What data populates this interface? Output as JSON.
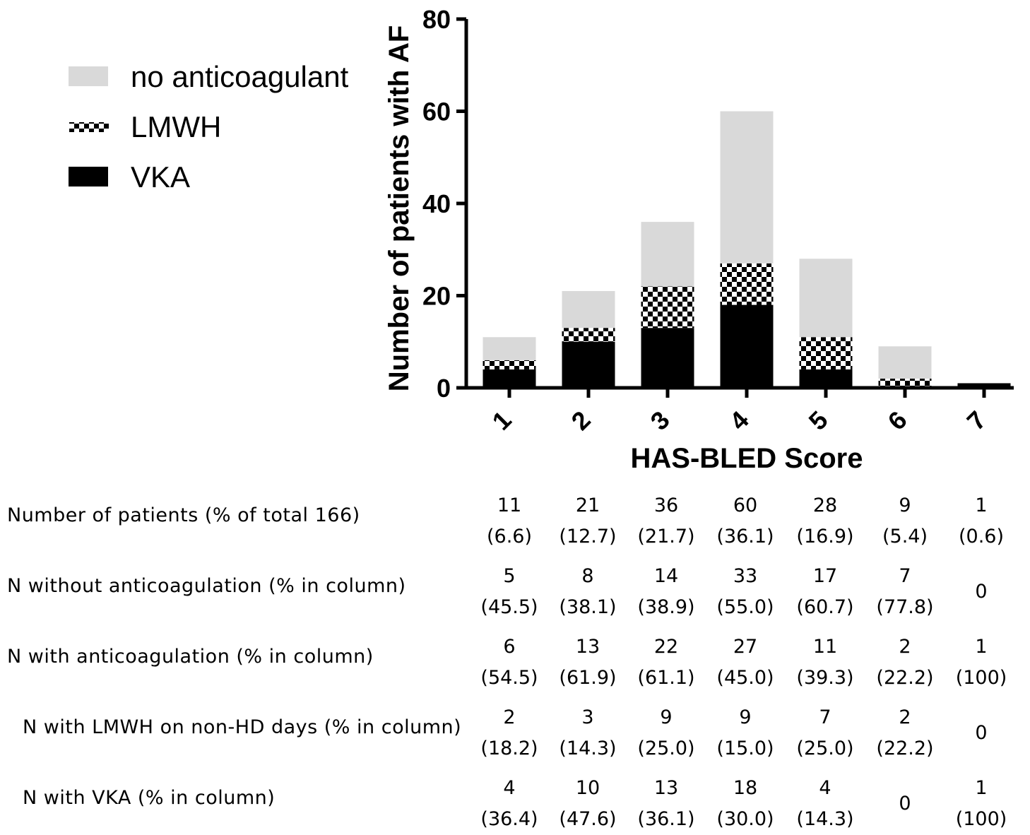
{
  "chart_data": {
    "type": "bar",
    "stacked": true,
    "categories": [
      "1",
      "2",
      "3",
      "4",
      "5",
      "6",
      "7"
    ],
    "series": [
      {
        "name": "VKA",
        "values": [
          4,
          10,
          13,
          18,
          4,
          0,
          1
        ],
        "color": "#000000",
        "pattern": "solid"
      },
      {
        "name": "LMWH",
        "values": [
          2,
          3,
          9,
          9,
          7,
          2,
          0
        ],
        "color": "#000000",
        "pattern": "checkerboard"
      },
      {
        "name": "no anticoagulant",
        "values": [
          5,
          8,
          14,
          33,
          17,
          7,
          0
        ],
        "color": "#d9d9d9",
        "pattern": "solid"
      }
    ],
    "legend_order": [
      "no anticoagulant",
      "LMWH",
      "VKA"
    ],
    "legend_position": "top-left",
    "xlabel": "HAS-BLED Score",
    "ylabel": "Number of patients with AF",
    "ylim": [
      0,
      80
    ],
    "yticks": [
      "0",
      "20",
      "40",
      "60",
      "80"
    ],
    "grid": false
  },
  "table": {
    "rows": [
      {
        "label": "Number of patients (% of total 166)",
        "indent": false,
        "cells": [
          [
            "11",
            "(6.6)"
          ],
          [
            "21",
            "(12.7)"
          ],
          [
            "36",
            "(21.7)"
          ],
          [
            "60",
            "(36.1)"
          ],
          [
            "28",
            "(16.9)"
          ],
          [
            "9",
            "(5.4)"
          ],
          [
            "1",
            "(0.6)"
          ]
        ]
      },
      {
        "label": "N without anticoagulation (% in column)",
        "indent": false,
        "cells": [
          [
            "5",
            "(45.5)"
          ],
          [
            "8",
            "(38.1)"
          ],
          [
            "14",
            "(38.9)"
          ],
          [
            "33",
            "(55.0)"
          ],
          [
            "17",
            "(60.7)"
          ],
          [
            "7",
            "(77.8)"
          ],
          [
            "0",
            ""
          ]
        ]
      },
      {
        "label": "N with anticoagulation (% in column)",
        "indent": false,
        "cells": [
          [
            "6",
            "(54.5)"
          ],
          [
            "13",
            "(61.9)"
          ],
          [
            "22",
            "(61.1)"
          ],
          [
            "27",
            "(45.0)"
          ],
          [
            "11",
            "(39.3)"
          ],
          [
            "2",
            "(22.2)"
          ],
          [
            "1",
            "(100)"
          ]
        ]
      },
      {
        "label": "N with LMWH on non-HD days (% in column)",
        "indent": true,
        "cells": [
          [
            "2",
            "(18.2)"
          ],
          [
            "3",
            "(14.3)"
          ],
          [
            "9",
            "(25.0)"
          ],
          [
            "9",
            "(15.0)"
          ],
          [
            "7",
            "(25.0)"
          ],
          [
            "2",
            "(22.2)"
          ],
          [
            "0",
            ""
          ]
        ]
      },
      {
        "label": "N with VKA (% in column)",
        "indent": true,
        "cells": [
          [
            "4",
            "(36.4)"
          ],
          [
            "10",
            "(47.6)"
          ],
          [
            "13",
            "(36.1)"
          ],
          [
            "18",
            "(30.0)"
          ],
          [
            "4",
            "(14.3)"
          ],
          [
            "0",
            ""
          ],
          [
            "1",
            "(100)"
          ]
        ]
      }
    ]
  }
}
